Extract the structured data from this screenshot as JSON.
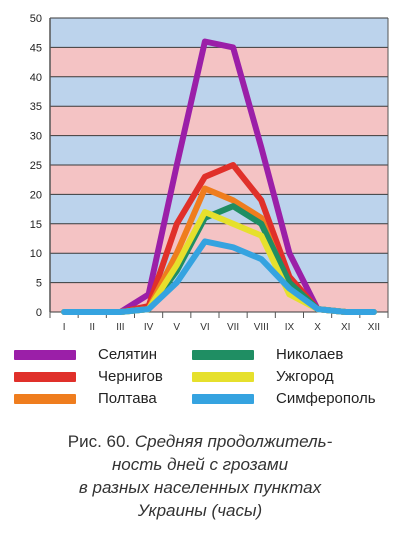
{
  "chart_data": {
    "type": "line",
    "categories": [
      "I",
      "II",
      "III",
      "IV",
      "V",
      "VI",
      "VII",
      "VIII",
      "IX",
      "X",
      "XI",
      "XII"
    ],
    "ylim": [
      0,
      50
    ],
    "yticks": [
      0,
      5,
      10,
      15,
      20,
      25,
      30,
      35,
      40,
      45,
      50
    ],
    "series": [
      {
        "name": "Селятин",
        "color": "#9b1fa8",
        "values": [
          0,
          0,
          0,
          3,
          25,
          46,
          45,
          28,
          10,
          0.5,
          0,
          0
        ]
      },
      {
        "name": "Чернигов",
        "color": "#e0302a",
        "values": [
          0,
          0,
          0,
          1,
          15,
          23,
          25,
          19,
          6,
          0.5,
          0,
          0
        ]
      },
      {
        "name": "Полтава",
        "color": "#ef7d1e",
        "values": [
          0,
          0,
          0,
          0.5,
          10,
          21,
          19,
          16,
          4,
          0.5,
          0,
          0
        ]
      },
      {
        "name": "Николаев",
        "color": "#1f8e63",
        "values": [
          0,
          0,
          0,
          0.5,
          7,
          16,
          18,
          15,
          5,
          0.5,
          0,
          0
        ]
      },
      {
        "name": "Ужгород",
        "color": "#e6e02c",
        "values": [
          0,
          0,
          0,
          0.5,
          8,
          17,
          15,
          13,
          3,
          0.5,
          0,
          0
        ]
      },
      {
        "name": "Симферополь",
        "color": "#35a3e0",
        "values": [
          0,
          0,
          0,
          0.5,
          5,
          12,
          11,
          9,
          4,
          0.5,
          0,
          0
        ]
      }
    ]
  },
  "colors": {
    "band_pink": "#f4c3c4",
    "band_blue": "#bcd3ec",
    "grid": "#3a3a3a",
    "axis": "#555555"
  },
  "caption": {
    "prefix": "Рис. 60.",
    "line1_rest": "Средняя продолжитель-",
    "line2": "ность дней с грозами",
    "line3": "в разных населенных пунктах",
    "line4": "Украины (часы)"
  }
}
